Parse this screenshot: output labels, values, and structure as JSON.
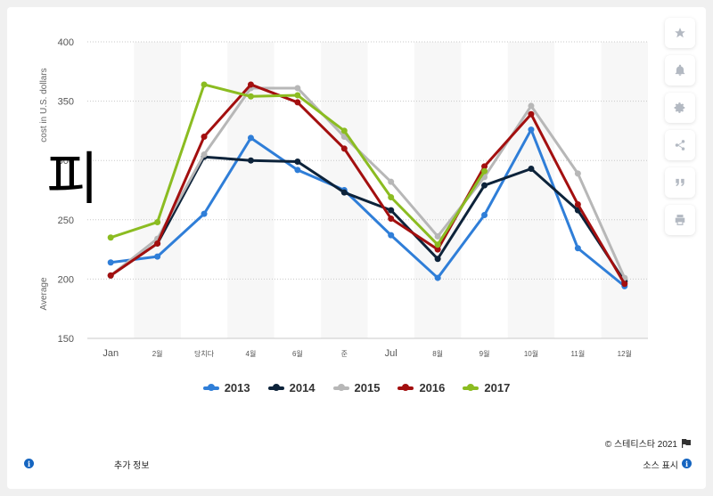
{
  "chart_data": {
    "type": "line",
    "title": "",
    "ylabel_left": "Average",
    "ylabel_right": "cost in U.S. dollars",
    "categories": [
      "Jan",
      "2월",
      "당치다",
      "4월",
      "6월",
      "준",
      "Jul",
      "8월",
      "9월",
      "10월",
      "11월",
      "12월"
    ],
    "ylim": [
      150,
      400
    ],
    "yticks": [
      150,
      200,
      250,
      300,
      350,
      400
    ],
    "grid": true,
    "legend_position": "bottom",
    "series": [
      {
        "name": "2013",
        "color": "#2f7ed8",
        "values": [
          214,
          219,
          255,
          319,
          292,
          275,
          237,
          201,
          254,
          326,
          226,
          194
        ]
      },
      {
        "name": "2014",
        "color": "#0d233a",
        "values": [
          203,
          230,
          303,
          300,
          299,
          273,
          258,
          217,
          279,
          293,
          258,
          198
        ]
      },
      {
        "name": "2015",
        "color": "#b7b7b7",
        "values": [
          203,
          234,
          305,
          361,
          361,
          320,
          282,
          236,
          286,
          346,
          289,
          201
        ]
      },
      {
        "name": "2016",
        "color": "#a30f0f",
        "values": [
          203,
          230,
          320,
          364,
          349,
          310,
          251,
          225,
          295,
          339,
          263,
          196
        ]
      },
      {
        "name": "2017",
        "color": "#8bbc21",
        "values": [
          235,
          248,
          364,
          354,
          355,
          325,
          269,
          229,
          291,
          null,
          null,
          null
        ]
      }
    ]
  },
  "overlay_glyph": "피",
  "footer": {
    "copyright": "©  스테티스타 2021",
    "more_info": "추가 정보",
    "source": "소스 표시"
  },
  "side_buttons": [
    "star-icon",
    "bell-icon",
    "gear-icon",
    "share-icon",
    "quote-icon",
    "print-icon"
  ]
}
